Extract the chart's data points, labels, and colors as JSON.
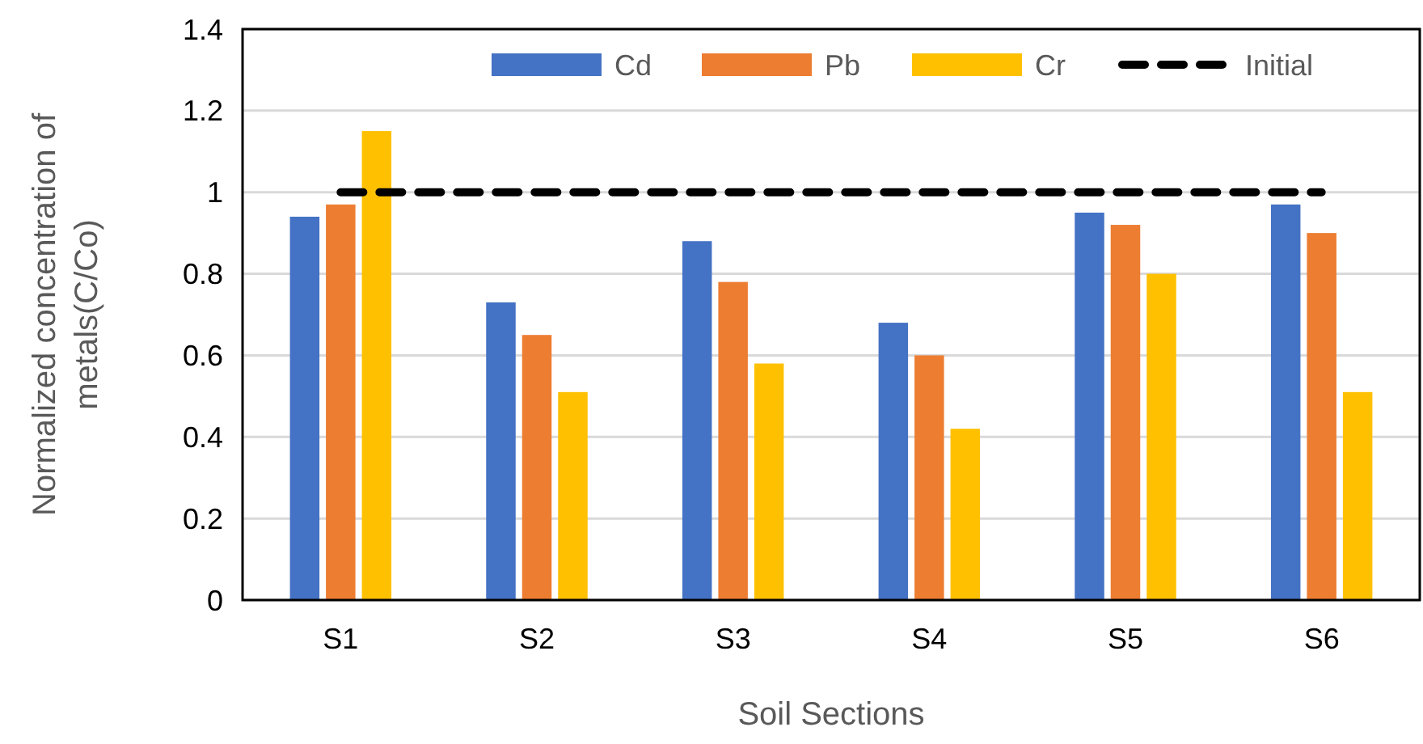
{
  "chart_data": {
    "type": "bar",
    "xlabel": "Soil Sections",
    "ylabel": "Normalized concentration of metals(C/Co)",
    "categories": [
      "S1",
      "S2",
      "S3",
      "S4",
      "S5",
      "S6"
    ],
    "series": [
      {
        "name": "Cd",
        "color": "#4472c4",
        "values": [
          0.94,
          0.73,
          0.88,
          0.68,
          0.95,
          0.97
        ]
      },
      {
        "name": "Pb",
        "color": "#ed7d31",
        "values": [
          0.97,
          0.65,
          0.78,
          0.6,
          0.92,
          0.9
        ]
      },
      {
        "name": "Cr",
        "color": "#ffc000",
        "values": [
          1.15,
          0.51,
          0.58,
          0.42,
          0.8,
          0.51
        ]
      },
      {
        "name": "Initial",
        "type": "line",
        "color": "#000000",
        "line_style": "dashed",
        "marker": "none",
        "values": [
          1,
          1,
          1,
          1,
          1,
          1
        ]
      }
    ],
    "ylim": [
      0,
      1.4
    ],
    "yticks": [
      0,
      0.2,
      0.4,
      0.6,
      0.8,
      1,
      1.2,
      1.4
    ],
    "grid": "y",
    "legend": "top"
  }
}
